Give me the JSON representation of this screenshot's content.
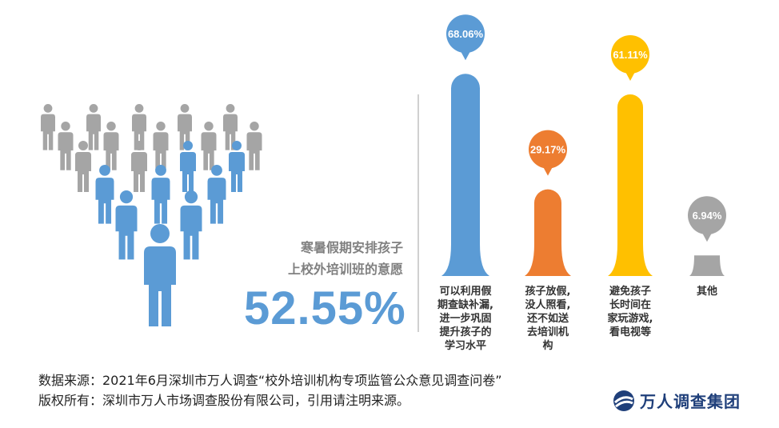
{
  "headline": {
    "line1": "寒暑假期安排孩子",
    "line2": "上校外培训班的意愿",
    "value": "52.55%"
  },
  "chart_data": {
    "type": "bar",
    "categories": [
      "可以利用假期查缺补漏，进一步巩固提升孩子的学习水平",
      "孩子放假，没人照看，还不如送去培训机构",
      "避免孩子长时间在家玩游戏，看电视等",
      "其他"
    ],
    "category_lines": [
      [
        "可以利用假",
        "期查缺补漏,",
        "进一步巩固",
        "提升孩子的",
        "学习水平"
      ],
      [
        "孩子放假,",
        "没人照看,",
        "还不如送",
        "去培训机",
        "构"
      ],
      [
        "避免孩子",
        "长时间在",
        "家玩游戏,",
        "看电视等"
      ],
      [
        "其他"
      ]
    ],
    "values": [
      68.06,
      29.17,
      61.11,
      6.94
    ],
    "labels": [
      "68.06%",
      "29.17%",
      "61.11%",
      "6.94%"
    ],
    "colors": [
      "#5b9bd5",
      "#ed7d31",
      "#ffc000",
      "#a5a5a5"
    ],
    "ylim": [
      0,
      70
    ]
  },
  "footer": {
    "source": "数据来源：2021年6月深圳市万人调查“校外培训机构专项监管公众意见调查问卷”",
    "copyright": "版权所有：深圳市万人市场调查股份有限公司，引用请注明来源。"
  },
  "logo": {
    "text": "万人调查集团",
    "color": "#1f3f7a"
  }
}
